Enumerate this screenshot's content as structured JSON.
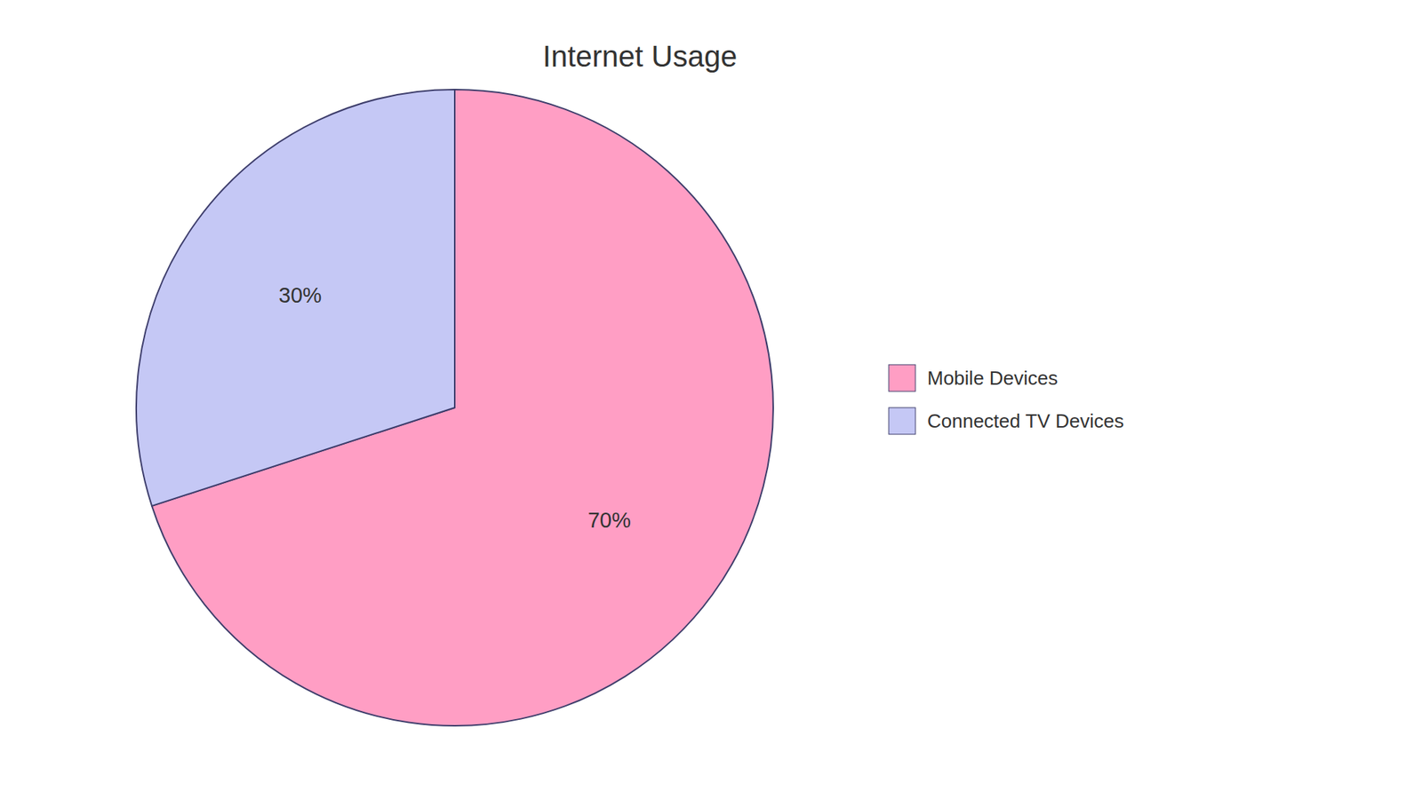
{
  "chart_data": {
    "type": "pie",
    "title": "Internet Usage",
    "categories": [
      "Mobile Devices",
      "Connected TV Devices"
    ],
    "values": [
      70,
      30
    ],
    "value_labels": [
      "70%",
      "30%"
    ],
    "colors": [
      "#FF9EC4",
      "#C5C8F5"
    ],
    "data_labels": true,
    "legend": "right"
  }
}
